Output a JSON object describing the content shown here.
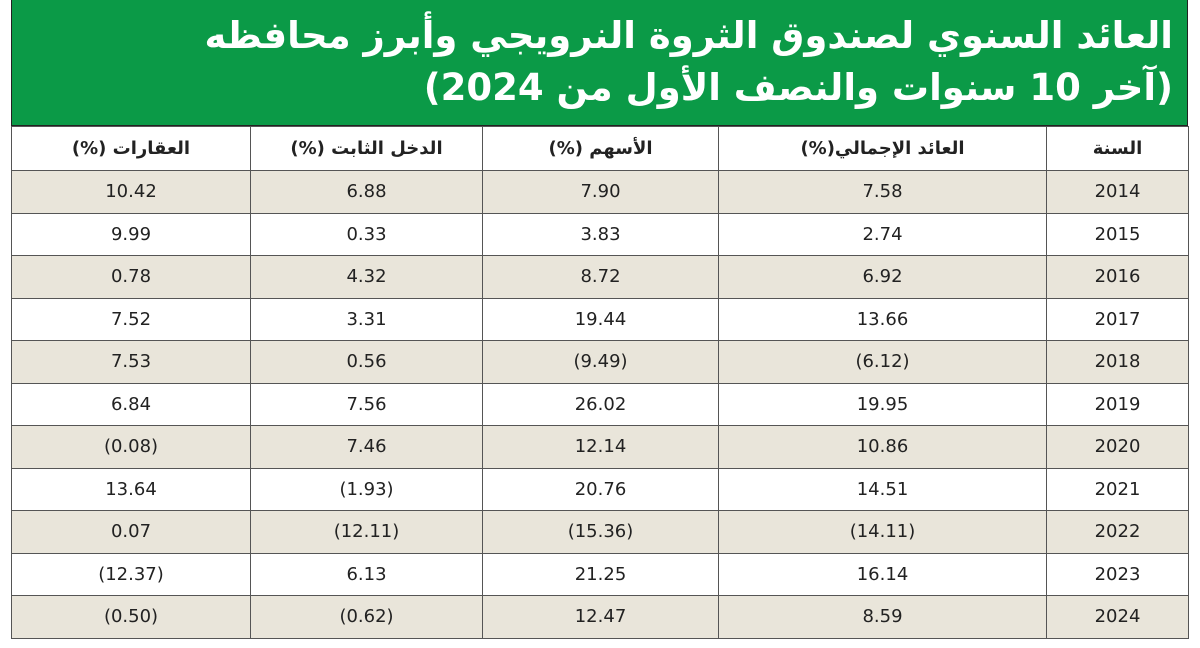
{
  "header": {
    "title_lines": [
      "العائد السنوي لصندوق الثروة النرويجي وأبرز محافظه",
      "(آخر 10 سنوات والنصف الأول من 2024)"
    ]
  },
  "table": {
    "columns": [
      "السنة",
      "العائد الإجمالي(%)",
      "الأسهم (%)",
      "الدخل الثابت (%)",
      "العقارات (%)"
    ],
    "rows": [
      [
        "2014",
        "7.58",
        "7.90",
        "6.88",
        "10.42"
      ],
      [
        "2015",
        "2.74",
        "3.83",
        "0.33",
        "9.99"
      ],
      [
        "2016",
        "6.92",
        "8.72",
        "4.32",
        "0.78"
      ],
      [
        "2017",
        "13.66",
        "19.44",
        "3.31",
        "7.52"
      ],
      [
        "2018",
        "(6.12)",
        "(9.49)",
        "0.56",
        "7.53"
      ],
      [
        "2019",
        "19.95",
        "26.02",
        "7.56",
        "6.84"
      ],
      [
        "2020",
        "10.86",
        "12.14",
        "7.46",
        "(0.08)"
      ],
      [
        "2021",
        "14.51",
        "20.76",
        "(1.93)",
        "13.64"
      ],
      [
        "2022",
        "(14.11)",
        "(15.36)",
        "(12.11)",
        "0.07"
      ],
      [
        "2023",
        "16.14",
        "21.25",
        "6.13",
        "(12.37)"
      ],
      [
        "2024",
        "8.59",
        "12.47",
        "(0.62)",
        "(0.50)"
      ]
    ]
  }
}
